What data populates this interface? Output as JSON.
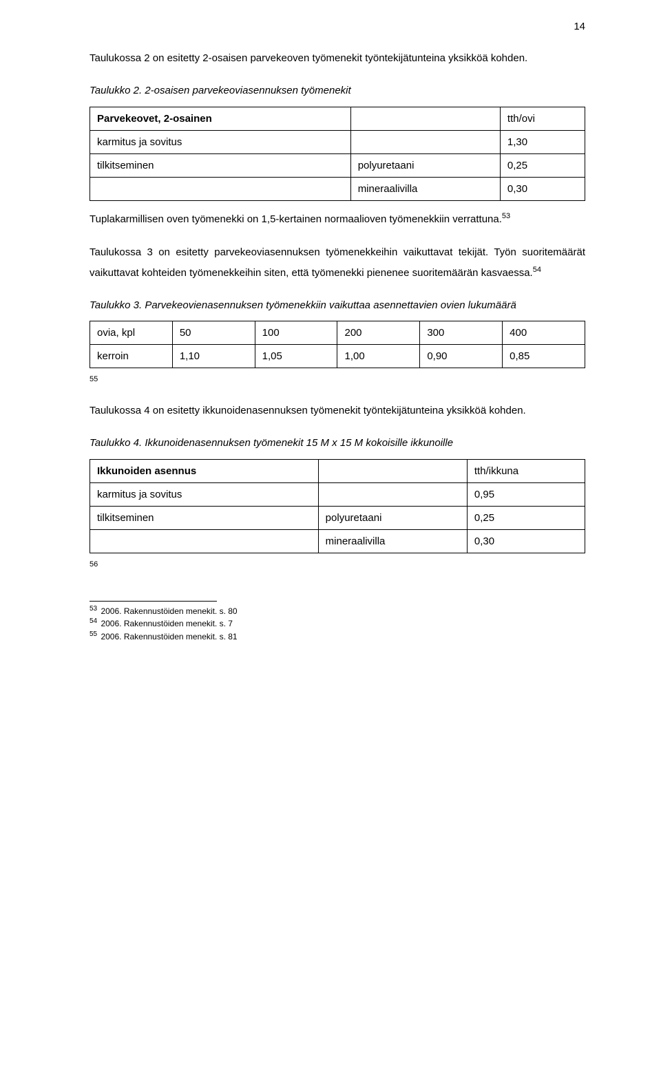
{
  "page_number": "14",
  "para1": "Taulukossa 2 on esitetty 2-osaisen parvekeoven työmenekit työntekijätunteina yksikköä kohden.",
  "table2": {
    "caption": "Taulukko 2. 2-osaisen parvekeoviasennuksen työmenekit",
    "header_left": "Parvekeovet, 2-osainen",
    "header_right": "tth/ovi",
    "rows": [
      {
        "c1": "karmitus ja sovitus",
        "c2": "",
        "c3": "1,30"
      },
      {
        "c1": "tilkitseminen",
        "c2": "polyuretaani",
        "c3": "0,25"
      },
      {
        "c1": "",
        "c2": "mineraalivilla",
        "c3": "0,30"
      }
    ]
  },
  "para2a": "Tuplakarmillisen oven työmenekki on 1,5-kertainen normaalioven työmenekkiin verrattuna.",
  "para2a_fn": "53",
  "para2b": "Taulukossa 3 on esitetty parvekeoviasennuksen työmenekkeihin vaikuttavat tekijät. Työn suoritemäärät vaikuttavat kohteiden työmenekkeihin siten, että työmenekki pienenee suoritemäärän kasvaessa.",
  "para2b_fn": "54",
  "table3": {
    "caption": "Taulukko 3. Parvekeovienasennuksen työmenekkiin vaikuttaa asennettavien ovien lukumäärä",
    "row1": [
      "ovia, kpl",
      "50",
      "100",
      "200",
      "300",
      "400"
    ],
    "row2": [
      "kerroin",
      "1,10",
      "1,05",
      "1,00",
      "0,90",
      "0,85"
    ]
  },
  "fn_marker_55": "55",
  "para3": "Taulukossa 4 on esitetty ikkunoidenasennuksen työmenekit työntekijätunteina yksikköä kohden.",
  "table4": {
    "caption": "Taulukko 4. Ikkunoidenasennuksen työmenekit 15 M x 15 M kokoisille ikkunoille",
    "header_left": "Ikkunoiden asennus",
    "header_right": "tth/ikkuna",
    "rows": [
      {
        "c1": "karmitus ja sovitus",
        "c2": "",
        "c3": "0,95"
      },
      {
        "c1": "tilkitseminen",
        "c2": "polyuretaani",
        "c3": "0,25"
      },
      {
        "c1": "",
        "c2": "mineraalivilla",
        "c3": "0,30"
      }
    ]
  },
  "fn_marker_56": "56",
  "footnotes": [
    {
      "num": "53",
      "text": " 2006. Rakennustöiden menekit. s. 80"
    },
    {
      "num": "54",
      "text": " 2006. Rakennustöiden menekit. s. 7"
    },
    {
      "num": "55",
      "text": " 2006. Rakennustöiden menekit. s. 81"
    }
  ]
}
